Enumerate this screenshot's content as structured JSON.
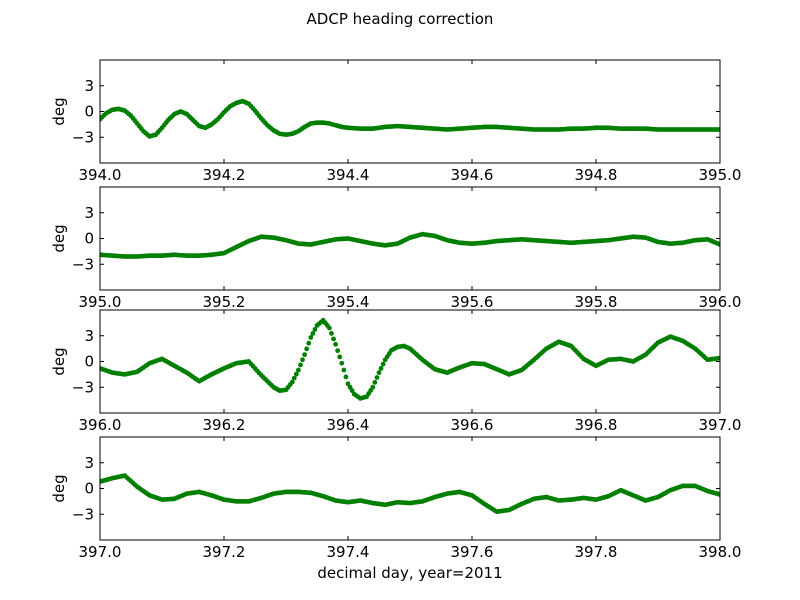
{
  "figure": {
    "title": "ADCP heading correction",
    "xlabel": "decimal day, year=2011"
  },
  "chart_data": [
    {
      "type": "scatter",
      "ylabel": "deg",
      "xlim": [
        394.0,
        395.0
      ],
      "ylim": [
        -6,
        6
      ],
      "xticks": [
        "394.0",
        "394.2",
        "394.4",
        "394.6",
        "394.8",
        "395.0"
      ],
      "yticks": [
        "3",
        "0",
        "−3"
      ],
      "ytick_values": [
        3,
        0,
        -3
      ],
      "color": "#007f00",
      "series": [
        {
          "values_x": [
            394.0,
            394.01,
            394.02,
            394.03,
            394.04,
            394.05,
            394.06,
            394.07,
            394.08,
            394.09,
            394.1,
            394.11,
            394.12,
            394.13,
            394.14,
            394.15,
            394.16,
            394.17,
            394.18,
            394.19,
            394.2,
            394.21,
            394.22,
            394.23,
            394.24,
            394.25,
            394.26,
            394.27,
            394.28,
            394.29,
            394.3,
            394.31,
            394.32,
            394.33,
            394.34,
            394.35,
            394.36,
            394.37,
            394.38,
            394.39,
            394.4,
            394.42,
            394.44,
            394.46,
            394.48,
            394.5,
            394.52,
            394.54,
            394.56,
            394.58,
            394.6,
            394.62,
            394.64,
            394.66,
            394.68,
            394.7,
            394.72,
            394.74,
            394.76,
            394.78,
            394.8,
            394.82,
            394.84,
            394.86,
            394.88,
            394.9,
            394.92,
            394.94,
            394.96,
            394.98,
            395.0
          ],
          "values_y": [
            -0.9,
            -0.2,
            0.2,
            0.3,
            0.1,
            -0.5,
            -1.4,
            -2.3,
            -2.9,
            -2.7,
            -1.9,
            -1.0,
            -0.3,
            0.0,
            -0.3,
            -1.0,
            -1.7,
            -1.9,
            -1.5,
            -0.9,
            -0.1,
            0.6,
            1.0,
            1.2,
            0.9,
            0.1,
            -0.8,
            -1.6,
            -2.2,
            -2.6,
            -2.7,
            -2.6,
            -2.3,
            -1.8,
            -1.4,
            -1.3,
            -1.3,
            -1.4,
            -1.6,
            -1.8,
            -1.9,
            -2.0,
            -2.0,
            -1.8,
            -1.7,
            -1.8,
            -1.9,
            -2.0,
            -2.1,
            -2.0,
            -1.9,
            -1.8,
            -1.8,
            -1.9,
            -2.0,
            -2.1,
            -2.1,
            -2.1,
            -2.0,
            -2.0,
            -1.9,
            -1.9,
            -2.0,
            -2.0,
            -2.0,
            -2.1,
            -2.1,
            -2.1,
            -2.1,
            -2.1,
            -2.1
          ]
        }
      ]
    },
    {
      "type": "scatter",
      "ylabel": "deg",
      "xlim": [
        395.0,
        396.0
      ],
      "ylim": [
        -6,
        6
      ],
      "xticks": [
        "395.0",
        "395.2",
        "395.4",
        "395.6",
        "395.8",
        "396.0"
      ],
      "yticks": [
        "3",
        "0",
        "−3"
      ],
      "ytick_values": [
        3,
        0,
        -3
      ],
      "color": "#007f00",
      "series": [
        {
          "values_x": [
            395.0,
            395.02,
            395.04,
            395.06,
            395.08,
            395.1,
            395.12,
            395.14,
            395.16,
            395.18,
            395.2,
            395.22,
            395.24,
            395.26,
            395.28,
            395.3,
            395.32,
            395.34,
            395.36,
            395.38,
            395.4,
            395.42,
            395.44,
            395.46,
            395.48,
            395.5,
            395.52,
            395.54,
            395.56,
            395.58,
            395.6,
            395.62,
            395.64,
            395.66,
            395.68,
            395.7,
            395.72,
            395.74,
            395.76,
            395.78,
            395.8,
            395.82,
            395.84,
            395.86,
            395.88,
            395.9,
            395.92,
            395.94,
            395.96,
            395.98,
            396.0
          ],
          "values_y": [
            -1.9,
            -2.0,
            -2.1,
            -2.1,
            -2.0,
            -2.0,
            -1.9,
            -2.0,
            -2.0,
            -1.9,
            -1.7,
            -1.0,
            -0.3,
            0.2,
            0.1,
            -0.2,
            -0.6,
            -0.7,
            -0.4,
            -0.1,
            0.0,
            -0.3,
            -0.6,
            -0.8,
            -0.6,
            0.1,
            0.5,
            0.3,
            -0.2,
            -0.5,
            -0.6,
            -0.5,
            -0.3,
            -0.2,
            -0.1,
            -0.2,
            -0.3,
            -0.4,
            -0.5,
            -0.4,
            -0.3,
            -0.2,
            0.0,
            0.2,
            0.1,
            -0.4,
            -0.6,
            -0.5,
            -0.2,
            -0.1,
            -0.7
          ]
        }
      ]
    },
    {
      "type": "scatter",
      "ylabel": "deg",
      "xlim": [
        396.0,
        397.0
      ],
      "ylim": [
        -6,
        6
      ],
      "xticks": [
        "396.0",
        "396.2",
        "396.4",
        "396.6",
        "396.8",
        "397.0"
      ],
      "yticks": [
        "3",
        "0",
        "−3"
      ],
      "ytick_values": [
        3,
        0,
        -3
      ],
      "color": "#007f00",
      "series": [
        {
          "values_x": [
            396.0,
            396.02,
            396.04,
            396.06,
            396.08,
            396.1,
            396.12,
            396.14,
            396.16,
            396.18,
            396.2,
            396.22,
            396.24,
            396.26,
            396.28,
            396.29,
            396.3,
            396.31,
            396.32,
            396.33,
            396.34,
            396.35,
            396.36,
            396.37,
            396.38,
            396.39,
            396.4,
            396.41,
            396.42,
            396.43,
            396.44,
            396.45,
            396.46,
            396.47,
            396.48,
            396.49,
            396.5,
            396.52,
            396.54,
            396.56,
            396.58,
            396.6,
            396.62,
            396.64,
            396.66,
            396.68,
            396.7,
            396.72,
            396.74,
            396.76,
            396.78,
            396.8,
            396.82,
            396.84,
            396.86,
            396.88,
            396.9,
            396.92,
            396.94,
            396.96,
            396.98,
            397.0
          ],
          "values_y": [
            -0.8,
            -1.3,
            -1.5,
            -1.2,
            -0.2,
            0.3,
            -0.5,
            -1.3,
            -2.3,
            -1.5,
            -0.8,
            -0.2,
            0.0,
            -1.6,
            -3.0,
            -3.4,
            -3.3,
            -2.4,
            -1.0,
            0.8,
            2.8,
            4.2,
            4.8,
            3.9,
            2.0,
            -0.2,
            -2.6,
            -3.8,
            -4.3,
            -4.1,
            -3.0,
            -1.3,
            0.2,
            1.3,
            1.7,
            1.8,
            1.5,
            0.2,
            -0.9,
            -1.3,
            -0.7,
            -0.2,
            -0.3,
            -0.9,
            -1.5,
            -1.0,
            0.2,
            1.5,
            2.3,
            1.8,
            0.3,
            -0.5,
            0.2,
            0.3,
            0.0,
            0.8,
            2.2,
            2.9,
            2.4,
            1.5,
            0.2,
            0.4
          ]
        }
      ]
    },
    {
      "type": "scatter",
      "ylabel": "deg",
      "xlim": [
        397.0,
        398.0
      ],
      "ylim": [
        -6,
        6
      ],
      "xticks": [
        "397.0",
        "397.2",
        "397.4",
        "397.6",
        "397.8",
        "398.0"
      ],
      "yticks": [
        "3",
        "0",
        "−3"
      ],
      "ytick_values": [
        3,
        0,
        -3
      ],
      "color": "#007f00",
      "series": [
        {
          "values_x": [
            397.0,
            397.02,
            397.04,
            397.06,
            397.08,
            397.1,
            397.12,
            397.14,
            397.16,
            397.18,
            397.2,
            397.22,
            397.24,
            397.26,
            397.28,
            397.3,
            397.32,
            397.34,
            397.36,
            397.38,
            397.4,
            397.42,
            397.44,
            397.46,
            397.48,
            397.5,
            397.52,
            397.54,
            397.56,
            397.58,
            397.6,
            397.62,
            397.64,
            397.66,
            397.68,
            397.7,
            397.72,
            397.74,
            397.76,
            397.78,
            397.8,
            397.82,
            397.84,
            397.86,
            397.88,
            397.9,
            397.92,
            397.94,
            397.96,
            397.98,
            398.0
          ],
          "values_y": [
            0.8,
            1.2,
            1.5,
            0.2,
            -0.8,
            -1.3,
            -1.2,
            -0.6,
            -0.4,
            -0.8,
            -1.3,
            -1.5,
            -1.5,
            -1.1,
            -0.6,
            -0.4,
            -0.4,
            -0.5,
            -0.9,
            -1.4,
            -1.6,
            -1.4,
            -1.7,
            -1.9,
            -1.6,
            -1.7,
            -1.5,
            -1.0,
            -0.6,
            -0.4,
            -0.8,
            -1.8,
            -2.7,
            -2.5,
            -1.8,
            -1.2,
            -1.0,
            -1.4,
            -1.3,
            -1.1,
            -1.3,
            -0.9,
            -0.2,
            -0.8,
            -1.4,
            -1.0,
            -0.2,
            0.3,
            0.3,
            -0.3,
            -0.7
          ]
        }
      ]
    }
  ]
}
